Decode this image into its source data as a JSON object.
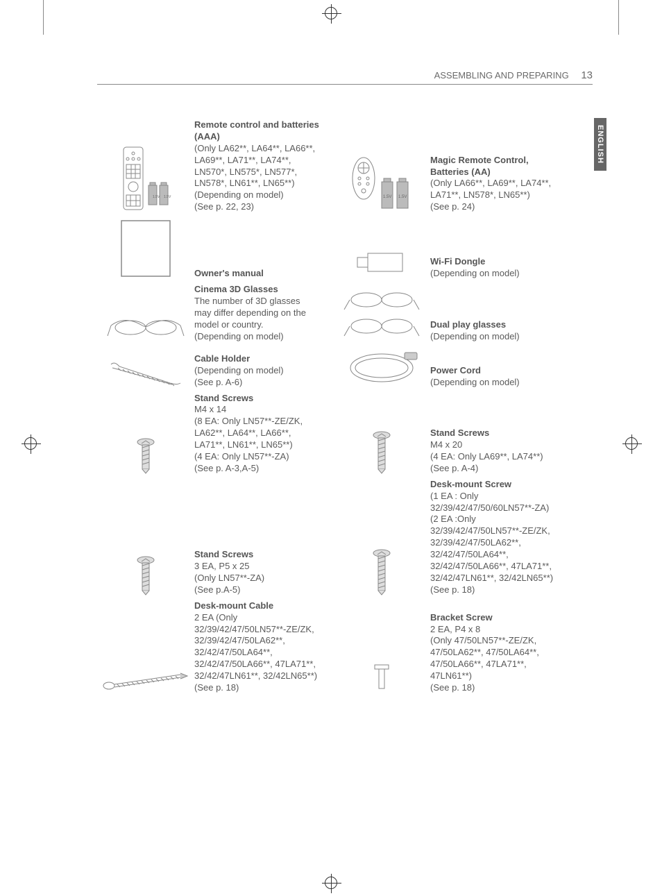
{
  "header": {
    "section": "ASSEMBLING AND PREPARING",
    "page": "13"
  },
  "langTab": "ENGLISH",
  "items": [
    {
      "leftTitle": "Remote control and batteries (AAA)",
      "leftBody": "(Only LA62**, LA64**, LA66**, LA69**, LA71**, LA74**, LN570*, LN575*, LN577*, LN578*, LN61**, LN65**)\n(Depending on model)\n(See p. 22, 23)",
      "rightTitle": "Magic Remote Control, Batteries (AA)",
      "rightBody": "(Only LA66**, LA69**, LA74**, LA71**, LN578*, LN65**)\n(See p. 24)",
      "iconL": "remote",
      "iconR": "magic-remote"
    },
    {
      "leftTitle": "Owner's manual",
      "leftBody": "",
      "rightTitle": "Wi-Fi Dongle",
      "rightBody": "(Depending on model)",
      "iconL": "manual",
      "iconR": "dongle"
    },
    {
      "leftTitle": "Cinema 3D Glasses",
      "leftBody": "The number of 3D glasses may differ depending on the model or country.\n(Depending on model)",
      "rightTitle": "Dual play glasses",
      "rightBody": "(Depending on model)",
      "iconL": "glasses1",
      "iconR": "glasses2"
    },
    {
      "leftTitle": "Cable Holder",
      "leftBody": "(Depending on model)\n(See p. A-6)",
      "rightTitle": "Power Cord",
      "rightBody": "(Depending on model)",
      "iconL": "cable-holder",
      "iconR": "power-cord"
    },
    {
      "leftTitle": "Stand Screws",
      "leftBody": "M4 x 14\n(8 EA: Only LN57**-ZE/ZK, LA62**, LA64**, LA66**, LA71**, LN61**, LN65**)\n(4 EA: Only LN57**-ZA)\n(See p. A-3,A-5)",
      "rightTitle": "Stand Screws",
      "rightBody": "M4 x 20\n(4 EA: Only LA69**, LA74**)\n(See p. A-4)",
      "iconL": "screw-short",
      "iconR": "screw-long"
    },
    {
      "leftTitle": "Stand Screws",
      "leftBody": "3 EA, P5 x 25\n(Only LN57**-ZA)\n(See p.A-5)",
      "rightTitle": "Desk-mount Screw",
      "rightBody": "(1 EA : Only 32/39/42/47/50/60LN57**-ZA)\n(2 EA :Only 32/39/42/47/50LN57**-ZE/ZK, 32/39/42/47/50LA62**, 32/42/47/50LA64**, 32/42/47/50LA66**, 47LA71**, 32/42/47LN61**, 32/42LN65**)\n(See p. 18)",
      "iconL": "screw-p5",
      "iconR": "screw-desk"
    },
    {
      "leftTitle": "Desk-mount Cable",
      "leftBody": "2 EA (Only 32/39/42/47/50LN57**-ZE/ZK, 32/39/42/47/50LA62**, 32/42/47/50LA64**, 32/42/47/50LA66**, 47LA71**, 32/42/47LN61**, 32/42LN65**)\n(See p. 18)",
      "rightTitle": "Bracket Screw",
      "rightBody": "2 EA, P4 x 8\n(Only 47/50LN57**-ZE/ZK, 47/50LA62**, 47/50LA64**, 47/50LA66**, 47LA71**, 47LN61**)\n(See p. 18)",
      "iconL": "desk-cable",
      "iconR": "bracket-screw"
    }
  ]
}
